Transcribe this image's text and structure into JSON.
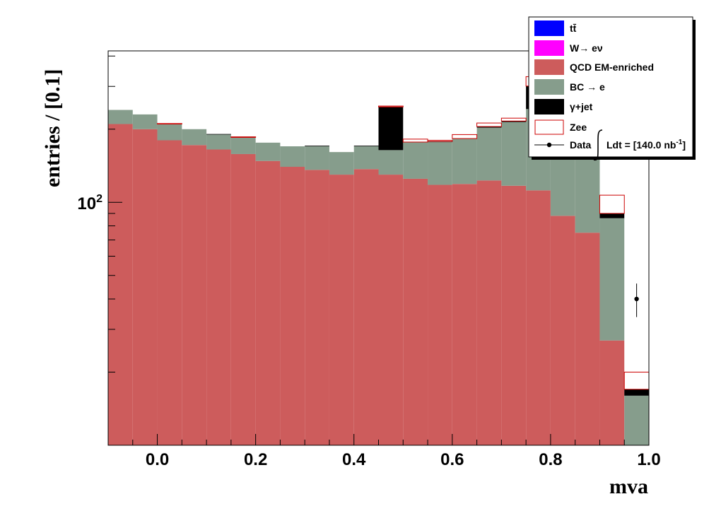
{
  "chart_data": {
    "type": "bar",
    "stacked": true,
    "log_y": true,
    "xlabel": "mva",
    "ylabel": "entries / [0.1]",
    "xlim": [
      -0.1,
      1.0
    ],
    "ylim": [
      10,
      420
    ],
    "x_ticks": [
      {
        "value": 0.0,
        "label": "0.0"
      },
      {
        "value": 0.2,
        "label": "0.2"
      },
      {
        "value": 0.4,
        "label": "0.4"
      },
      {
        "value": 0.6,
        "label": "0.6"
      },
      {
        "value": 0.8,
        "label": "0.8"
      },
      {
        "value": 1.0,
        "label": "1.0"
      }
    ],
    "y_ticks": [
      {
        "value": 100,
        "base": "10",
        "exp": "2"
      }
    ],
    "bin_width": 0.05,
    "x_bin_low": [
      -0.1,
      -0.05,
      0.0,
      0.05,
      0.1,
      0.15,
      0.2,
      0.25,
      0.3,
      0.35,
      0.4,
      0.45,
      0.5,
      0.55,
      0.6,
      0.65,
      0.7,
      0.75,
      0.8,
      0.85,
      0.9,
      0.95
    ],
    "series": [
      {
        "name": "QCD EM-enriched",
        "color": "#cd5c5c",
        "values": [
          210,
          200,
          180,
          172,
          165,
          158,
          148,
          140,
          136,
          130,
          137,
          130,
          125,
          118,
          119,
          123,
          117,
          112,
          88,
          75,
          27,
          0
        ]
      },
      {
        "name": "BC → e",
        "color": "#869d8c",
        "values": [
          30,
          30,
          30,
          28,
          25,
          27,
          28,
          30,
          34,
          31,
          33,
          34,
          52,
          59,
          64,
          80,
          97,
          130,
          180,
          105,
          59,
          16
        ]
      },
      {
        "name": "γ+jet",
        "color": "#000000",
        "values": [
          0,
          0,
          0,
          0,
          1,
          0,
          0,
          0,
          1,
          0,
          1,
          83,
          0,
          1,
          0,
          2,
          2,
          59,
          0,
          0,
          4,
          1
        ]
      },
      {
        "name": "Zee",
        "color": "#cc0000",
        "outline": true,
        "values": [
          0,
          0,
          1,
          0,
          0,
          1,
          0,
          0,
          0,
          0,
          0,
          2,
          5,
          2,
          7,
          7,
          6,
          28,
          0,
          0,
          17,
          3
        ]
      },
      {
        "name": "W→ eν",
        "color": "#ff00ff",
        "values": [
          0,
          0,
          0,
          0,
          0,
          0,
          0,
          0,
          0,
          0,
          0,
          0,
          0,
          0,
          0,
          0,
          0,
          0,
          0,
          0,
          0,
          0
        ]
      },
      {
        "name": "tt̄",
        "color": "#0000ff",
        "values": [
          0,
          0,
          0,
          0,
          0,
          0,
          0,
          0,
          0,
          0,
          0,
          0,
          0,
          0,
          0,
          0,
          0,
          0,
          0,
          0,
          0,
          0
        ]
      }
    ],
    "data_points": [
      {
        "x": 0.975,
        "y": 40,
        "yerr": 6.3
      }
    ],
    "legend": {
      "placement": "top-right",
      "entries": [
        {
          "label": "tt̄",
          "style": "fill",
          "color": "#0000ff"
        },
        {
          "label": "W→ eν",
          "style": "fill",
          "color": "#ff00ff"
        },
        {
          "label": "QCD EM-enriched",
          "style": "fill",
          "color": "#cd5c5c"
        },
        {
          "label": "BC → e",
          "style": "fill",
          "color": "#869d8c"
        },
        {
          "label": "γ+jet",
          "style": "fill",
          "color": "#000000"
        },
        {
          "label": "Zee",
          "style": "outline",
          "color": "#cc0000"
        },
        {
          "label": "Data",
          "style": "marker",
          "color": "#000000"
        }
      ],
      "lumi_prefix": "Ldt = [",
      "lumi_value": "140.0 nb",
      "lumi_exp": "-1",
      "lumi_suffix": "]"
    }
  }
}
